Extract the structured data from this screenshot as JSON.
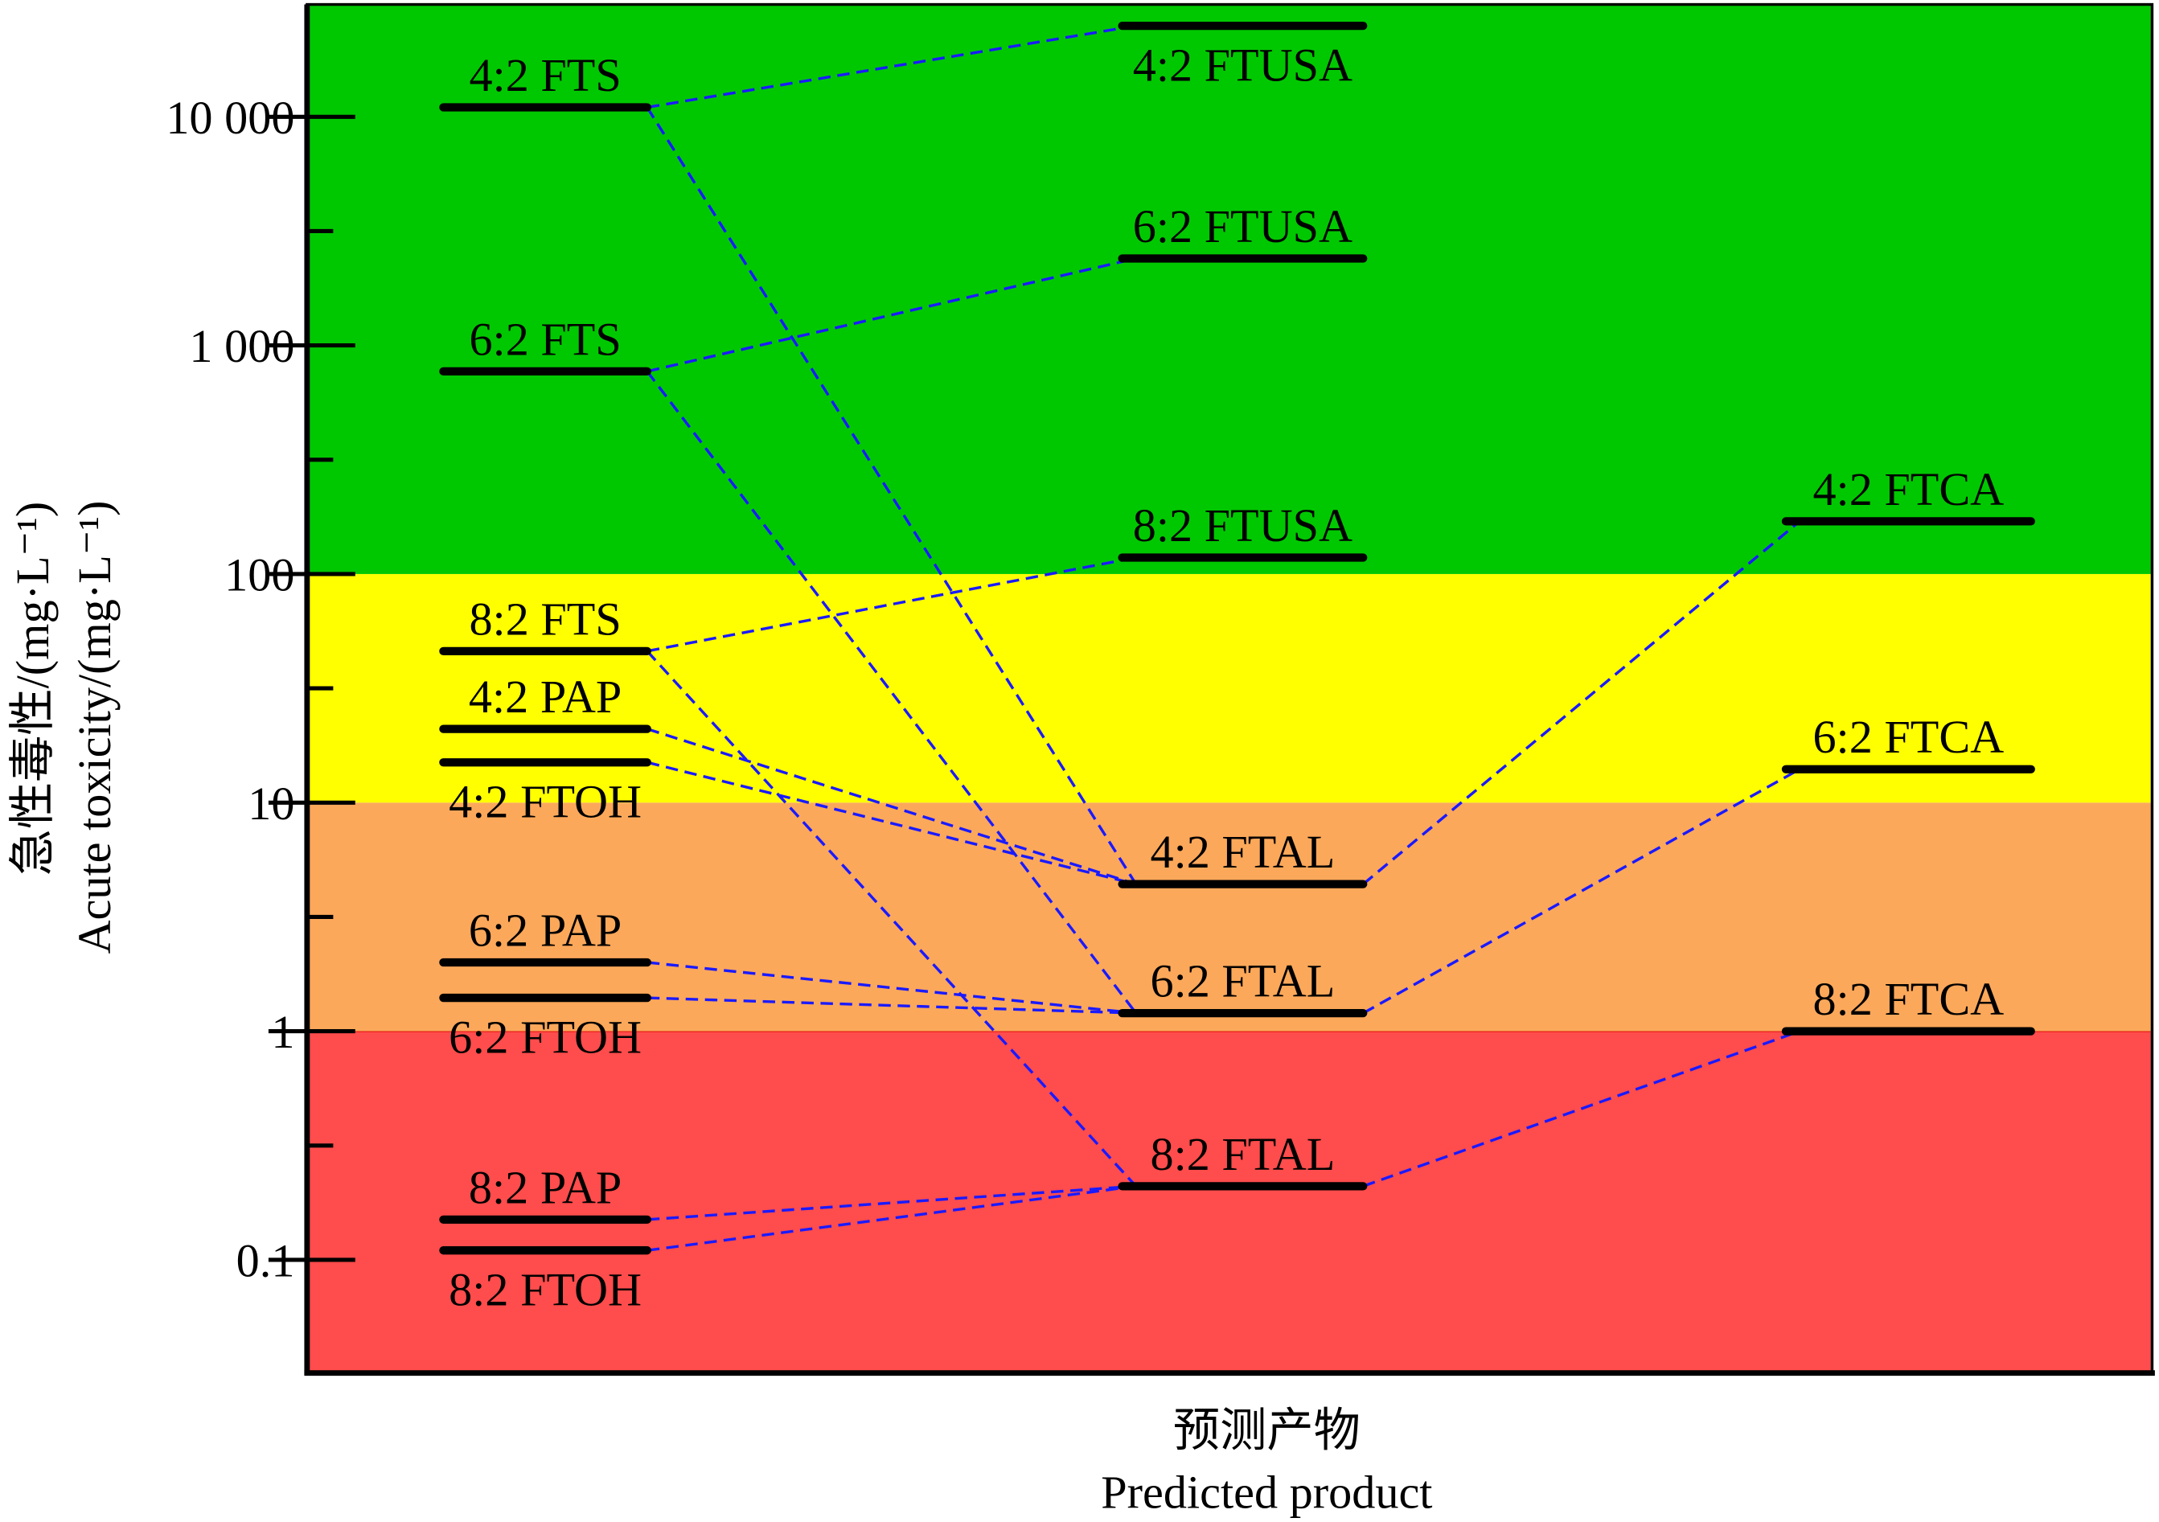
{
  "chart_data": {
    "type": "level",
    "ylabel": [
      "急性毒性/(mg·L⁻¹)",
      "Acute toxicity/(mg·L⁻¹)"
    ],
    "xlabel": [
      "预测产物",
      "Predicted product"
    ],
    "log_y": true,
    "ylim": [
      0.032,
      31000
    ],
    "yticks": [
      0.1,
      1,
      10,
      100,
      {
        "value": 1000,
        "label": "1 000"
      },
      {
        "value": 10000,
        "label": "10 000"
      }
    ],
    "minor_yticks": [
      0.3162,
      3.162,
      31.62,
      316.2,
      3162
    ],
    "band_edges": [
      1,
      10,
      100
    ],
    "band_colors": [
      "#ff4c4c",
      "#fca85a",
      "#ffff00",
      "#00c800"
    ],
    "bar_color": "#000000",
    "link_color": "#1a1aff",
    "items": [
      {
        "name": "4:2 FTS",
        "column": 0,
        "value": 11000,
        "label_pos": "above"
      },
      {
        "name": "6:2 FTS",
        "column": 0,
        "value": 770,
        "label_pos": "above"
      },
      {
        "name": "8:2 FTS",
        "column": 0,
        "value": 46,
        "label_pos": "above"
      },
      {
        "name": "4:2 PAP",
        "column": 0,
        "value": 21,
        "label_pos": "above"
      },
      {
        "name": "4:2 FTOH",
        "column": 0,
        "value": 15,
        "label_pos": "below"
      },
      {
        "name": "6:2 PAP",
        "column": 0,
        "value": 2.0,
        "label_pos": "above"
      },
      {
        "name": "6:2 FTOH",
        "column": 0,
        "value": 1.4,
        "label_pos": "below"
      },
      {
        "name": "8:2 PAP",
        "column": 0,
        "value": 0.15,
        "label_pos": "above"
      },
      {
        "name": "8:2 FTOH",
        "column": 0,
        "value": 0.11,
        "label_pos": "below"
      },
      {
        "name": "4:2 FTUSA",
        "column": 1,
        "value": 25000,
        "label_pos": "below"
      },
      {
        "name": "6:2 FTUSA",
        "column": 1,
        "value": 2400,
        "label_pos": "above"
      },
      {
        "name": "8:2 FTUSA",
        "column": 1,
        "value": 118,
        "label_pos": "above"
      },
      {
        "name": "4:2 FTAL",
        "column": 1,
        "value": 4.4,
        "label_pos": "above"
      },
      {
        "name": "6:2 FTAL",
        "column": 1,
        "value": 1.2,
        "label_pos": "above"
      },
      {
        "name": "8:2 FTAL",
        "column": 1,
        "value": 0.21,
        "label_pos": "above"
      },
      {
        "name": "4:2 FTCA",
        "column": 2,
        "value": 170,
        "label_pos": "above"
      },
      {
        "name": "6:2 FTCA",
        "column": 2,
        "value": 14,
        "label_pos": "above"
      },
      {
        "name": "8:2 FTCA",
        "column": 2,
        "value": 1.0,
        "label_pos": "above"
      }
    ],
    "links": [
      [
        0,
        9
      ],
      [
        0,
        12
      ],
      [
        1,
        10
      ],
      [
        1,
        13
      ],
      [
        2,
        11
      ],
      [
        2,
        14
      ],
      [
        3,
        12
      ],
      [
        4,
        12
      ],
      [
        5,
        13
      ],
      [
        6,
        13
      ],
      [
        7,
        14
      ],
      [
        8,
        14
      ],
      [
        12,
        15
      ],
      [
        13,
        16
      ],
      [
        14,
        17
      ]
    ]
  }
}
